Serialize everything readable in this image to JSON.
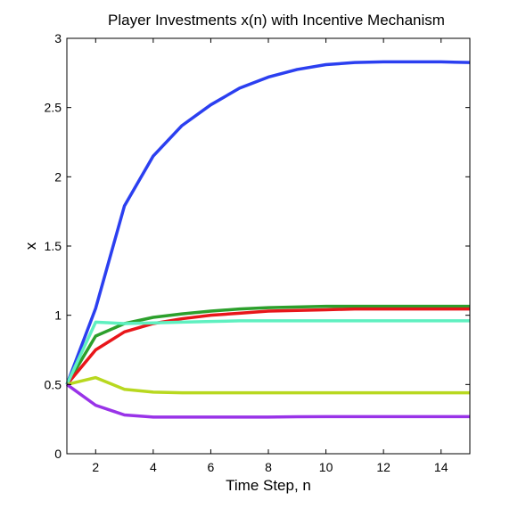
{
  "chart_data": {
    "type": "line",
    "title": "Player Investments x(n) with Incentive Mechanism",
    "xlabel": "Time Step, n",
    "ylabel": "x",
    "xlim": [
      1,
      15
    ],
    "ylim": [
      0,
      3
    ],
    "xticks": [
      2,
      4,
      6,
      8,
      10,
      12,
      14
    ],
    "yticks": [
      0,
      0.5,
      1,
      1.5,
      2,
      2.5,
      3
    ],
    "ytick_labels": [
      "0",
      "0.5",
      "1",
      "1.5",
      "2",
      "2.5",
      "3"
    ],
    "grid": false,
    "x": [
      1,
      2,
      3,
      4,
      5,
      6,
      7,
      8,
      9,
      10,
      11,
      12,
      13,
      14,
      15
    ],
    "series": [
      {
        "color": "#2b3ff0",
        "values": [
          0.5,
          1.05,
          1.79,
          2.15,
          2.37,
          2.52,
          2.64,
          2.72,
          2.775,
          2.81,
          2.825,
          2.83,
          2.83,
          2.83,
          2.825
        ]
      },
      {
        "color": "#2ca02c",
        "values": [
          0.5,
          0.85,
          0.94,
          0.985,
          1.01,
          1.03,
          1.045,
          1.055,
          1.06,
          1.065,
          1.065,
          1.065,
          1.065,
          1.065,
          1.065
        ]
      },
      {
        "color": "#e8161a",
        "values": [
          0.5,
          0.75,
          0.88,
          0.94,
          0.975,
          1.0,
          1.015,
          1.03,
          1.035,
          1.04,
          1.045,
          1.045,
          1.045,
          1.045,
          1.045
        ]
      },
      {
        "color": "#5ff0c0",
        "values": [
          0.5,
          0.95,
          0.94,
          0.945,
          0.95,
          0.955,
          0.96,
          0.96,
          0.96,
          0.96,
          0.96,
          0.96,
          0.96,
          0.96,
          0.96
        ]
      },
      {
        "color": "#b8d81f",
        "values": [
          0.5,
          0.55,
          0.465,
          0.445,
          0.44,
          0.44,
          0.44,
          0.44,
          0.44,
          0.44,
          0.44,
          0.44,
          0.44,
          0.44,
          0.44
        ]
      },
      {
        "color": "#9933e8",
        "values": [
          0.5,
          0.35,
          0.28,
          0.265,
          0.265,
          0.265,
          0.265,
          0.265,
          0.267,
          0.268,
          0.268,
          0.268,
          0.268,
          0.268,
          0.268
        ]
      }
    ]
  }
}
